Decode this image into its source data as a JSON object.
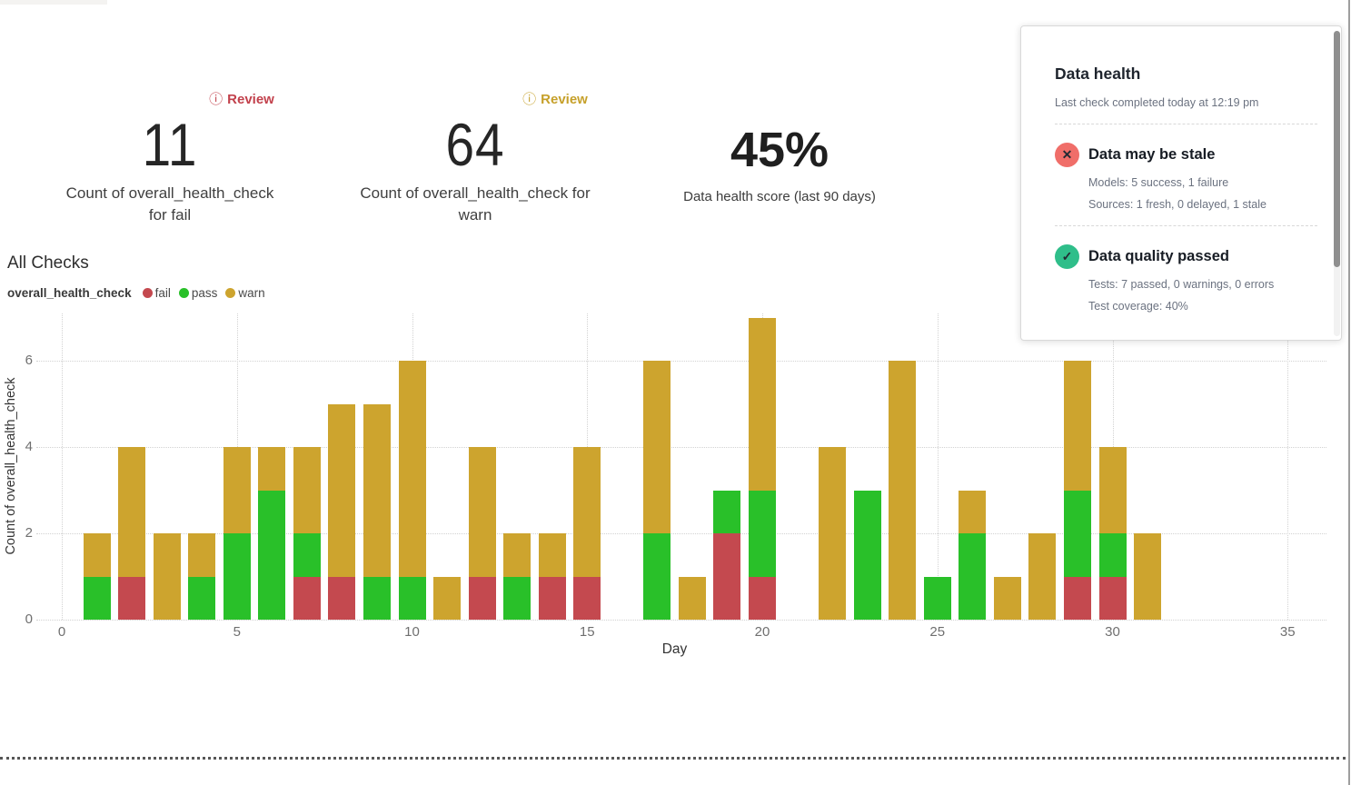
{
  "page": {
    "kpi_fail": {
      "badge": "Review",
      "number": "11",
      "label_line1": "Count of overall_health_check",
      "label_line2": "for fail",
      "badge_color": "#c2414c"
    },
    "kpi_warn": {
      "badge": "Review",
      "number": "64",
      "label_line1": "Count of overall_health_check for",
      "label_line2": "warn",
      "badge_color": "#c6a02a"
    },
    "kpi_score": {
      "number": "45%",
      "label": "Data health score (last 90 days)"
    },
    "section_title": "All Checks",
    "legend": {
      "field": "overall_health_check",
      "items": [
        {
          "label": "fail",
          "color": "#c4494f"
        },
        {
          "label": "pass",
          "color": "#29c029"
        },
        {
          "label": "warn",
          "color": "#cda42e"
        }
      ]
    },
    "panel": {
      "title": "Data health",
      "subtitle": "Last check completed today at 12:19 pm",
      "statuses": [
        {
          "icon": "x-icon",
          "icon_glyph": "✕",
          "icon_color": "#f06e69",
          "title": "Data may be stale",
          "line1": "Models: 5 success, 1 failure",
          "line2": "Sources: 1 fresh, 0 delayed, 1 stale"
        },
        {
          "icon": "check-icon",
          "icon_glyph": "✓",
          "icon_color": "#2fbe8a",
          "title": "Data quality passed",
          "line1": "Tests: 7 passed, 0 warnings, 0 errors",
          "line2": "Test coverage: 40%"
        }
      ]
    }
  },
  "chart_data": {
    "type": "bar",
    "stacked": true,
    "title": "All Checks",
    "xlabel": "Day",
    "ylabel": "Count of overall_health_check",
    "xlim": [
      0,
      35
    ],
    "x_ticks": [
      0,
      5,
      10,
      15,
      20,
      25,
      30,
      35
    ],
    "y_ticks": [
      0,
      2,
      4,
      6
    ],
    "ylim": [
      0,
      7
    ],
    "grid": "dotted",
    "legend_position": "top-left",
    "stack_order": [
      "fail",
      "pass",
      "warn"
    ],
    "series": [
      {
        "name": "fail",
        "color": "#c4494f",
        "total": 11
      },
      {
        "name": "pass",
        "color": "#29c029",
        "total": 25
      },
      {
        "name": "warn",
        "color": "#cda42e",
        "total": 64
      }
    ],
    "days": [
      {
        "day": 1,
        "fail": 0,
        "pass": 1,
        "warn": 1
      },
      {
        "day": 2,
        "fail": 1,
        "pass": 0,
        "warn": 3
      },
      {
        "day": 3,
        "fail": 0,
        "pass": 0,
        "warn": 2
      },
      {
        "day": 4,
        "fail": 0,
        "pass": 1,
        "warn": 1
      },
      {
        "day": 5,
        "fail": 0,
        "pass": 2,
        "warn": 2
      },
      {
        "day": 6,
        "fail": 0,
        "pass": 3,
        "warn": 1
      },
      {
        "day": 7,
        "fail": 1,
        "pass": 1,
        "warn": 2
      },
      {
        "day": 8,
        "fail": 1,
        "pass": 0,
        "warn": 4
      },
      {
        "day": 9,
        "fail": 0,
        "pass": 1,
        "warn": 4
      },
      {
        "day": 10,
        "fail": 0,
        "pass": 1,
        "warn": 5
      },
      {
        "day": 11,
        "fail": 0,
        "pass": 0,
        "warn": 1
      },
      {
        "day": 12,
        "fail": 1,
        "pass": 0,
        "warn": 3
      },
      {
        "day": 13,
        "fail": 0,
        "pass": 1,
        "warn": 1
      },
      {
        "day": 14,
        "fail": 1,
        "pass": 0,
        "warn": 1
      },
      {
        "day": 15,
        "fail": 1,
        "pass": 0,
        "warn": 3
      },
      {
        "day": 17,
        "fail": 0,
        "pass": 2,
        "warn": 4
      },
      {
        "day": 18,
        "fail": 0,
        "pass": 0,
        "warn": 1
      },
      {
        "day": 19,
        "fail": 2,
        "pass": 1,
        "warn": 0
      },
      {
        "day": 20,
        "fail": 1,
        "pass": 2,
        "warn": 4
      },
      {
        "day": 22,
        "fail": 0,
        "pass": 0,
        "warn": 4
      },
      {
        "day": 23,
        "fail": 0,
        "pass": 3,
        "warn": 0
      },
      {
        "day": 24,
        "fail": 0,
        "pass": 0,
        "warn": 6
      },
      {
        "day": 25,
        "fail": 0,
        "pass": 1,
        "warn": 0
      },
      {
        "day": 26,
        "fail": 0,
        "pass": 2,
        "warn": 1
      },
      {
        "day": 27,
        "fail": 0,
        "pass": 0,
        "warn": 1
      },
      {
        "day": 28,
        "fail": 0,
        "pass": 0,
        "warn": 2
      },
      {
        "day": 29,
        "fail": 1,
        "pass": 2,
        "warn": 3
      },
      {
        "day": 30,
        "fail": 1,
        "pass": 1,
        "warn": 2
      },
      {
        "day": 31,
        "fail": 0,
        "pass": 0,
        "warn": 2
      }
    ]
  }
}
